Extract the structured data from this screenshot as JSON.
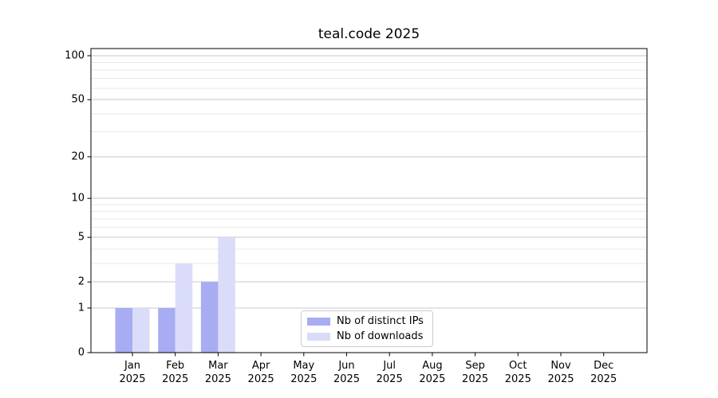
{
  "chart_data": {
    "type": "bar",
    "title": "teal.code 2025",
    "yscale": "log1p",
    "categories": [
      "Jan 2025",
      "Feb 2025",
      "Mar 2025",
      "Apr 2025",
      "May 2025",
      "Jun 2025",
      "Jul 2025",
      "Aug 2025",
      "Sep 2025",
      "Oct 2025",
      "Nov 2025",
      "Dec 2025"
    ],
    "series": [
      {
        "name": "Nb of distinct IPs",
        "color": "#a8acf2",
        "values": [
          1,
          1,
          2,
          0,
          0,
          0,
          0,
          0,
          0,
          0,
          0,
          0
        ]
      },
      {
        "name": "Nb of downloads",
        "color": "#dadcf9",
        "values": [
          1,
          3,
          5,
          0,
          0,
          0,
          0,
          0,
          0,
          0,
          0,
          0
        ]
      }
    ],
    "xlabel": "",
    "ylabel": "",
    "y_ticks": [
      0,
      1,
      2,
      5,
      10,
      20,
      50,
      100
    ],
    "minor_gridlines": [
      3,
      4,
      6,
      7,
      8,
      9,
      30,
      40,
      60,
      70,
      80,
      90
    ],
    "ylim": [
      0,
      112
    ],
    "grid": true,
    "legend_position": "lower center",
    "colors": {
      "major_grid": "#c9c9c9",
      "minor_grid": "#e9e9e9",
      "spine": "#000000",
      "text": "#000000"
    }
  }
}
